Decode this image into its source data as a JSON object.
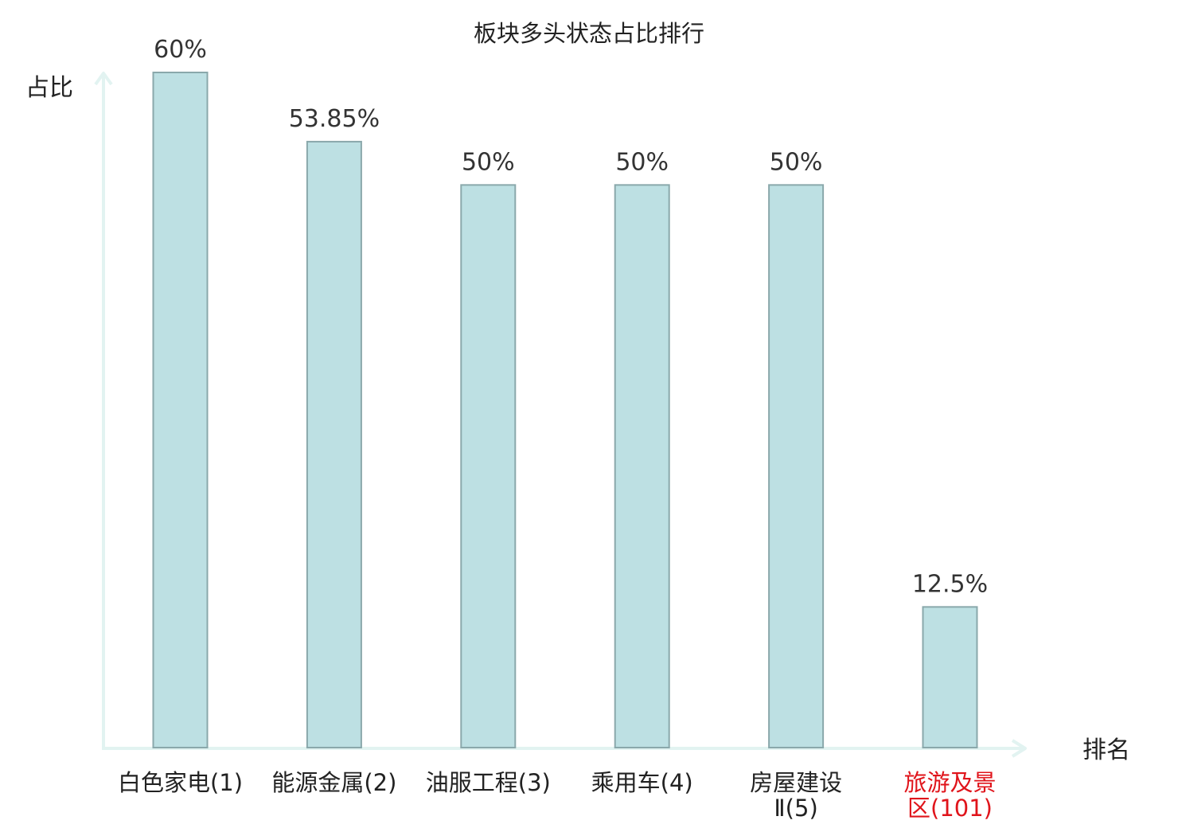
{
  "chart_data": {
    "type": "bar",
    "title": "板块多头状态占比排行",
    "ylabel": "占比",
    "xlabel": "排名",
    "ylim": [
      0,
      60
    ],
    "grid": false,
    "categories": [
      {
        "lines": [
          "白色家电(1)"
        ],
        "highlight": false
      },
      {
        "lines": [
          "能源金属(2)"
        ],
        "highlight": false
      },
      {
        "lines": [
          "油服工程(3)"
        ],
        "highlight": false
      },
      {
        "lines": [
          "乘用车(4)"
        ],
        "highlight": false
      },
      {
        "lines": [
          "房屋建设",
          "Ⅱ(5)"
        ],
        "highlight": false
      },
      {
        "lines": [
          "旅游及景",
          "区(101)"
        ],
        "highlight": true
      }
    ],
    "values": [
      60,
      53.85,
      50,
      50,
      50,
      12.5
    ],
    "value_labels": [
      "60%",
      "53.85%",
      "50%",
      "50%",
      "50%",
      "12.5%"
    ]
  },
  "colors": {
    "bar_fill": "#bde0e3",
    "bar_stroke": "#8aa8ab",
    "axis": "#e2f3f1",
    "text": "#222222",
    "highlight": "#e0141b"
  }
}
